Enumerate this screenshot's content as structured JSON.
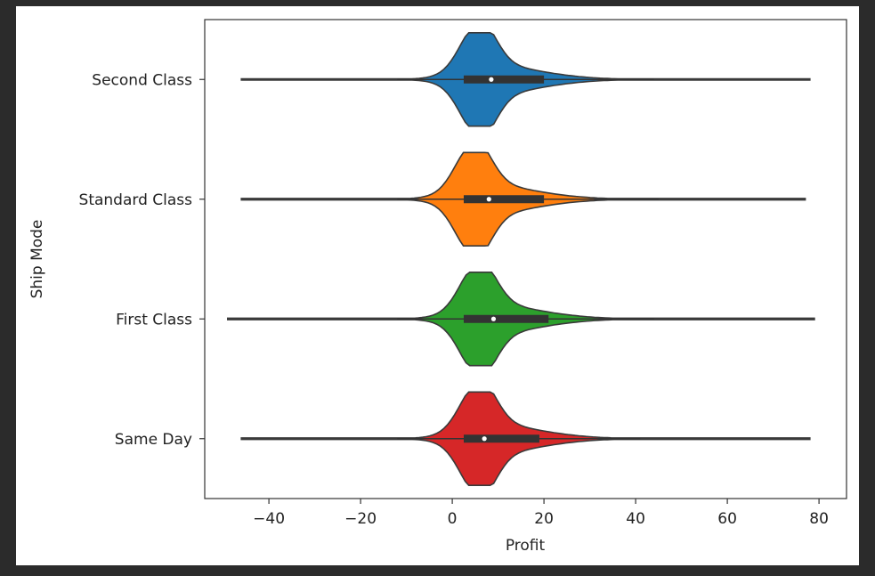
{
  "chart_data": {
    "type": "violin",
    "orientation": "horizontal",
    "xlabel": "Profit",
    "ylabel": "Ship Mode",
    "xlim": [
      -54,
      86
    ],
    "xticks": [
      -40,
      -20,
      0,
      20,
      40,
      60,
      80
    ],
    "xtick_labels": [
      "−40",
      "−20",
      "0",
      "20",
      "40",
      "60",
      "80"
    ],
    "grid": false,
    "categories": [
      "Second Class",
      "Standard Class",
      "First Class",
      "Same Day"
    ],
    "series": [
      {
        "category": "Second Class",
        "color": "#1f77b4",
        "min": -46,
        "max": 78,
        "q1": 2.5,
        "median": 8.5,
        "q3": 20,
        "whisker_low": -12,
        "whisker_high": 44,
        "mode": 5.5
      },
      {
        "category": "Standard Class",
        "color": "#ff7f0e",
        "min": -46,
        "max": 77,
        "q1": 2.5,
        "median": 8,
        "q3": 20,
        "whisker_low": -12,
        "whisker_high": 45,
        "mode": 4.5
      },
      {
        "category": "First Class",
        "color": "#2ca02c",
        "min": -49,
        "max": 79,
        "q1": 2.5,
        "median": 9,
        "q3": 21,
        "whisker_low": -12,
        "whisker_high": 44,
        "mode": 5.5
      },
      {
        "category": "Same Day",
        "color": "#d62728",
        "min": -46,
        "max": 78,
        "q1": 2.5,
        "median": 7,
        "q3": 19,
        "whisker_low": -12,
        "whisker_high": 41,
        "mode": 5.5
      }
    ]
  }
}
